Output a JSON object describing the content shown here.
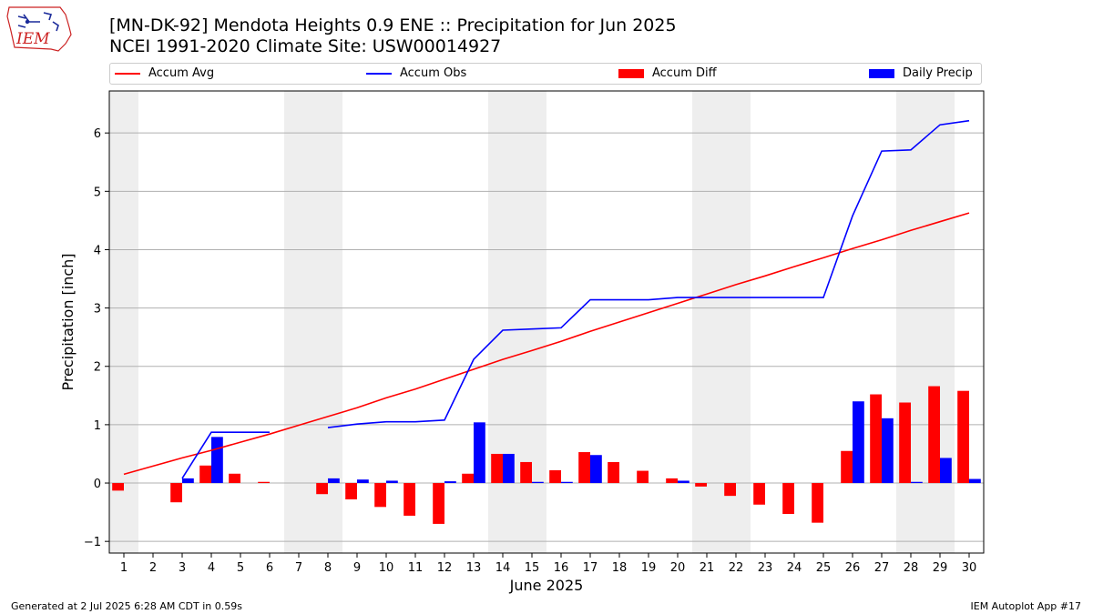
{
  "header": {
    "title_line1": "[MN-DK-92] Mendota Heights 0.9 ENE :: Precipitation for Jun 2025",
    "title_line2": "NCEI 1991-2020 Climate Site: USW00014927",
    "logo_text": "IEM"
  },
  "footer": {
    "left": "Generated at 2 Jul 2025 6:28 AM CDT in 0.59s",
    "right": "IEM Autoplot App #17"
  },
  "colors": {
    "accum_avg": "#ff0000",
    "accum_obs": "#0000ff",
    "accum_diff": "#ff0000",
    "daily_precip": "#0000ff",
    "weekend_shading": "#eeeeee",
    "grid": "#b0b0b0"
  },
  "chart_data": {
    "type": "bar",
    "xlabel": "June 2025",
    "ylabel": "Precipitation [inch]",
    "ylim": [
      -1.2,
      6.72
    ],
    "yticks": [
      -1,
      0,
      1,
      2,
      3,
      4,
      5,
      6
    ],
    "grid": "horizontal",
    "legend_position": "top",
    "categories": [
      "1",
      "2",
      "3",
      "4",
      "5",
      "6",
      "7",
      "8",
      "9",
      "10",
      "11",
      "12",
      "13",
      "14",
      "15",
      "16",
      "17",
      "18",
      "19",
      "20",
      "21",
      "22",
      "23",
      "24",
      "25",
      "26",
      "27",
      "28",
      "29",
      "30"
    ],
    "shaded_days": [
      1,
      7,
      8,
      14,
      15,
      21,
      22,
      28,
      29
    ],
    "series": [
      {
        "name": "Accum Avg",
        "kind": "line",
        "values": [
          0.15,
          0.29,
          0.43,
          0.56,
          0.7,
          0.84,
          0.99,
          1.14,
          1.29,
          1.46,
          1.61,
          1.78,
          1.95,
          2.12,
          2.27,
          2.43,
          2.6,
          2.76,
          2.92,
          3.08,
          3.24,
          3.4,
          3.55,
          3.71,
          3.86,
          4.02,
          4.17,
          4.33,
          4.48,
          4.63
        ]
      },
      {
        "name": "Accum Obs",
        "kind": "line",
        "values": [
          null,
          null,
          0.08,
          0.87,
          0.87,
          0.87,
          null,
          0.95,
          1.01,
          1.05,
          1.05,
          1.08,
          2.12,
          2.62,
          2.64,
          2.66,
          3.14,
          3.14,
          3.14,
          3.18,
          3.18,
          3.18,
          3.18,
          3.18,
          3.18,
          4.58,
          5.69,
          5.71,
          6.14,
          6.21
        ]
      },
      {
        "name": "Accum Diff",
        "kind": "bar",
        "values": [
          -0.13,
          null,
          -0.33,
          0.3,
          0.16,
          0.02,
          null,
          -0.19,
          -0.28,
          -0.41,
          -0.56,
          -0.7,
          0.16,
          0.5,
          0.36,
          0.22,
          0.53,
          0.36,
          0.21,
          0.08,
          -0.06,
          -0.22,
          -0.37,
          -0.53,
          -0.68,
          0.55,
          1.52,
          1.38,
          1.66,
          1.58
        ]
      },
      {
        "name": "Daily Precip",
        "kind": "bar",
        "values": [
          null,
          null,
          0.08,
          0.79,
          0.0,
          null,
          null,
          0.08,
          0.06,
          0.04,
          0.0,
          0.03,
          1.04,
          0.5,
          0.02,
          0.02,
          0.48,
          0.0,
          0.0,
          0.04,
          0.0,
          0.0,
          0.0,
          0.0,
          0.0,
          1.4,
          1.11,
          0.02,
          0.43,
          0.07
        ]
      }
    ]
  }
}
